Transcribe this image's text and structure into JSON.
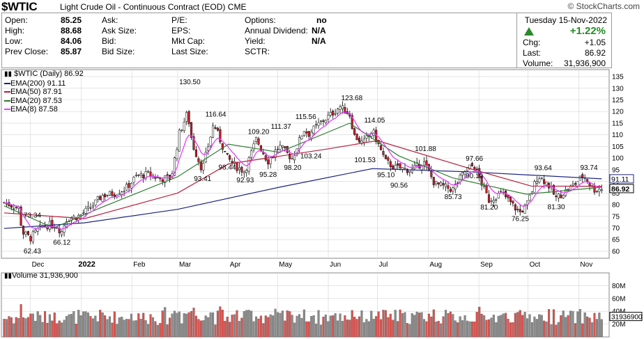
{
  "header": {
    "symbol": "$WTIC",
    "description": "Light Crude Oil - Continuous Contract (EOD)",
    "exchange": "CME",
    "logo": "© StockCharts.com"
  },
  "quote": {
    "open_label": "Open:",
    "open": "85.25",
    "high_label": "High:",
    "high": "88.68",
    "low_label": "Low:",
    "low": "84.06",
    "prev_label": "Prev Close:",
    "prev": "85.87",
    "ask_label": "Ask:",
    "ask": "",
    "asksize_label": "Ask Size:",
    "asksize": "",
    "bid_label": "Bid:",
    "bid": "",
    "bidsize_label": "Bid Size:",
    "bidsize": "",
    "pe_label": "P/E:",
    "eps_label": "EPS:",
    "mktcap_label": "Mkt Cap:",
    "lastsize_label": "Last Size:",
    "options_label": "Options:",
    "options": "no",
    "div_label": "Annual Dividend:",
    "div": "N/A",
    "yield_label": "Yield:",
    "yield": "N/A",
    "sctr_label": "SCTR:",
    "sctr": ""
  },
  "summary": {
    "date": "Tuesday  15-Nov-2022",
    "pct": "+1.22%",
    "chg_label": "Chg:",
    "chg": "+1.05",
    "last_label": "Last:",
    "last": "86.92",
    "vol_label": "Volume:",
    "vol": "31,936,900"
  },
  "legend": {
    "price": "$WTIC (Daily) 86.92",
    "ema200": "EMA(200) 91.11",
    "ema50": "EMA(50) 87.91",
    "ema20": "EMA(20) 87.53",
    "ema8": "EMA(8) 87.58",
    "volume": "Volume 31,936,900"
  },
  "colors": {
    "up": "#ffffff",
    "down": "#cc1f2b",
    "wick": "#000000",
    "ema200": "#1a237e",
    "ema50": "#b71c3a",
    "ema20": "#2e7d32",
    "ema8": "#e040fb",
    "vol_up": "#8a8a8a",
    "vol_down": "#d9534f",
    "grid": "#d4d4d4"
  },
  "chart_data": [
    {
      "type": "candlestick",
      "title": "$WTIC (Daily) 86.92",
      "ylim": [
        57,
        138
      ],
      "yticks": [
        60,
        65,
        70,
        75,
        80,
        85,
        90,
        95,
        100,
        105,
        110,
        115,
        120,
        125,
        130,
        135
      ],
      "x_ticks": [
        "Dec",
        "2022",
        "Feb",
        "Mar",
        "Apr",
        "May",
        "Jun",
        "Jul",
        "Aug",
        "Sep",
        "Oct",
        "Nov"
      ],
      "price_tags": {
        "ema200": "91.11",
        "last": "86.92"
      },
      "annotations": [
        {
          "label": "73.34",
          "date": "2021-12-02",
          "value": 73.34
        },
        {
          "label": "62.43",
          "date": "2021-12-02",
          "value": 62.43
        },
        {
          "label": "66.12",
          "date": "2021-12-20",
          "value": 66.12
        },
        {
          "label": "130.50",
          "date": "2022-03-07",
          "value": 130.5
        },
        {
          "label": "93.41",
          "date": "2022-03-16",
          "value": 93.41
        },
        {
          "label": "116.64",
          "date": "2022-03-23",
          "value": 116.64
        },
        {
          "label": "98.44",
          "date": "2022-03-31",
          "value": 98.44
        },
        {
          "label": "92.93",
          "date": "2022-04-11",
          "value": 92.93
        },
        {
          "label": "109.20",
          "date": "2022-04-18",
          "value": 109.2
        },
        {
          "label": "95.28",
          "date": "2022-04-25",
          "value": 95.28
        },
        {
          "label": "111.37",
          "date": "2022-05-02",
          "value": 111.37
        },
        {
          "label": "98.20",
          "date": "2022-05-10",
          "value": 98.2
        },
        {
          "label": "115.56",
          "date": "2022-05-17",
          "value": 115.56
        },
        {
          "label": "103.24",
          "date": "2022-05-20",
          "value": 103.24
        },
        {
          "label": "123.68",
          "date": "2022-06-14",
          "value": 123.68
        },
        {
          "label": "114.05",
          "date": "2022-06-28",
          "value": 114.05
        },
        {
          "label": "101.53",
          "date": "2022-06-22",
          "value": 101.53
        },
        {
          "label": "95.10",
          "date": "2022-07-06",
          "value": 95.1
        },
        {
          "label": "90.56",
          "date": "2022-07-14",
          "value": 90.56
        },
        {
          "label": "101.88",
          "date": "2022-07-29",
          "value": 101.88
        },
        {
          "label": "85.73",
          "date": "2022-08-16",
          "value": 85.73
        },
        {
          "label": "97.66",
          "date": "2022-08-29",
          "value": 97.66
        },
        {
          "label": "90.19",
          "date": "2022-08-29",
          "value": 90.19
        },
        {
          "label": "81.20",
          "date": "2022-09-07",
          "value": 81.2
        },
        {
          "label": "76.25",
          "date": "2022-09-26",
          "value": 76.25
        },
        {
          "label": "93.64",
          "date": "2022-10-10",
          "value": 93.64
        },
        {
          "label": "81.30",
          "date": "2022-10-18",
          "value": 81.3
        },
        {
          "label": "93.74",
          "date": "2022-11-07",
          "value": 93.74
        }
      ],
      "path": [
        [
          "2021-11-15",
          80.9
        ],
        [
          "2021-11-24",
          78.4
        ],
        [
          "2021-11-26",
          68.2
        ],
        [
          "2021-12-01",
          65.6
        ],
        [
          "2021-12-02",
          66.5
        ],
        [
          "2021-12-06",
          69.5
        ],
        [
          "2021-12-09",
          70.9
        ],
        [
          "2021-12-13",
          71.3
        ],
        [
          "2021-12-17",
          70.9
        ],
        [
          "2021-12-20",
          68.2
        ],
        [
          "2021-12-23",
          73.8
        ],
        [
          "2021-12-31",
          75.2
        ],
        [
          "2022-01-07",
          78.9
        ],
        [
          "2022-01-14",
          84.0
        ],
        [
          "2022-01-21",
          84.8
        ],
        [
          "2022-01-28",
          86.8
        ],
        [
          "2022-02-04",
          92.3
        ],
        [
          "2022-02-11",
          93.1
        ],
        [
          "2022-02-18",
          91.1
        ],
        [
          "2022-02-25",
          91.6
        ],
        [
          "2022-03-02",
          110.6
        ],
        [
          "2022-03-07",
          119.4
        ],
        [
          "2022-03-10",
          106.0
        ],
        [
          "2022-03-16",
          95.0
        ],
        [
          "2022-03-23",
          114.9
        ],
        [
          "2022-03-31",
          100.3
        ],
        [
          "2022-04-06",
          96.2
        ],
        [
          "2022-04-11",
          94.3
        ],
        [
          "2022-04-18",
          108.2
        ],
        [
          "2022-04-25",
          98.5
        ],
        [
          "2022-05-02",
          105.2
        ],
        [
          "2022-05-10",
          99.8
        ],
        [
          "2022-05-17",
          112.4
        ],
        [
          "2022-05-20",
          110.3
        ],
        [
          "2022-05-27",
          115.1
        ],
        [
          "2022-06-03",
          118.9
        ],
        [
          "2022-06-08",
          122.1
        ],
        [
          "2022-06-14",
          118.9
        ],
        [
          "2022-06-17",
          109.6
        ],
        [
          "2022-06-22",
          106.2
        ],
        [
          "2022-06-28",
          111.8
        ],
        [
          "2022-07-06",
          98.5
        ],
        [
          "2022-07-12",
          95.8
        ],
        [
          "2022-07-14",
          95.8
        ],
        [
          "2022-07-22",
          94.7
        ],
        [
          "2022-07-29",
          98.6
        ],
        [
          "2022-08-05",
          89.0
        ],
        [
          "2022-08-16",
          86.5
        ],
        [
          "2022-08-24",
          95.0
        ],
        [
          "2022-08-29",
          97.0
        ],
        [
          "2022-09-07",
          81.9
        ],
        [
          "2022-09-15",
          85.1
        ],
        [
          "2022-09-23",
          78.7
        ],
        [
          "2022-09-26",
          76.7
        ],
        [
          "2022-09-30",
          79.5
        ],
        [
          "2022-10-07",
          92.6
        ],
        [
          "2022-10-13",
          89.1
        ],
        [
          "2022-10-18",
          82.8
        ],
        [
          "2022-10-28",
          87.9
        ],
        [
          "2022-11-04",
          92.6
        ],
        [
          "2022-11-10",
          86.5
        ],
        [
          "2022-11-15",
          86.9
        ]
      ],
      "ema200": [
        [
          "2021-11-15",
          69.8
        ],
        [
          "2022-01-03",
          72.2
        ],
        [
          "2022-03-01",
          78.0
        ],
        [
          "2022-05-02",
          87.5
        ],
        [
          "2022-06-28",
          95.5
        ],
        [
          "2022-08-29",
          94.0
        ],
        [
          "2022-11-15",
          91.1
        ]
      ],
      "ema50": [
        [
          "2021-11-15",
          76.5
        ],
        [
          "2022-01-03",
          74.0
        ],
        [
          "2022-03-01",
          85.0
        ],
        [
          "2022-04-01",
          97.5
        ],
        [
          "2022-06-01",
          104.0
        ],
        [
          "2022-07-01",
          107.5
        ],
        [
          "2022-08-29",
          95.0
        ],
        [
          "2022-10-03",
          88.0
        ],
        [
          "2022-11-15",
          87.9
        ]
      ],
      "ema20": [
        [
          "2021-11-15",
          79.5
        ],
        [
          "2021-12-15",
          70.0
        ],
        [
          "2022-01-14",
          79.0
        ],
        [
          "2022-03-01",
          92.0
        ],
        [
          "2022-04-01",
          106.0
        ],
        [
          "2022-05-02",
          102.5
        ],
        [
          "2022-06-14",
          115.0
        ],
        [
          "2022-07-14",
          101.0
        ],
        [
          "2022-08-16",
          91.5
        ],
        [
          "2022-09-30",
          84.5
        ],
        [
          "2022-11-15",
          87.5
        ]
      ]
    },
    {
      "type": "bar",
      "title": "Volume 31,936,900",
      "ylim": [
        0,
        100000000
      ],
      "yticks": [
        "80M",
        "60M",
        "40M",
        "20M"
      ],
      "last_tag": "31936900"
    }
  ]
}
